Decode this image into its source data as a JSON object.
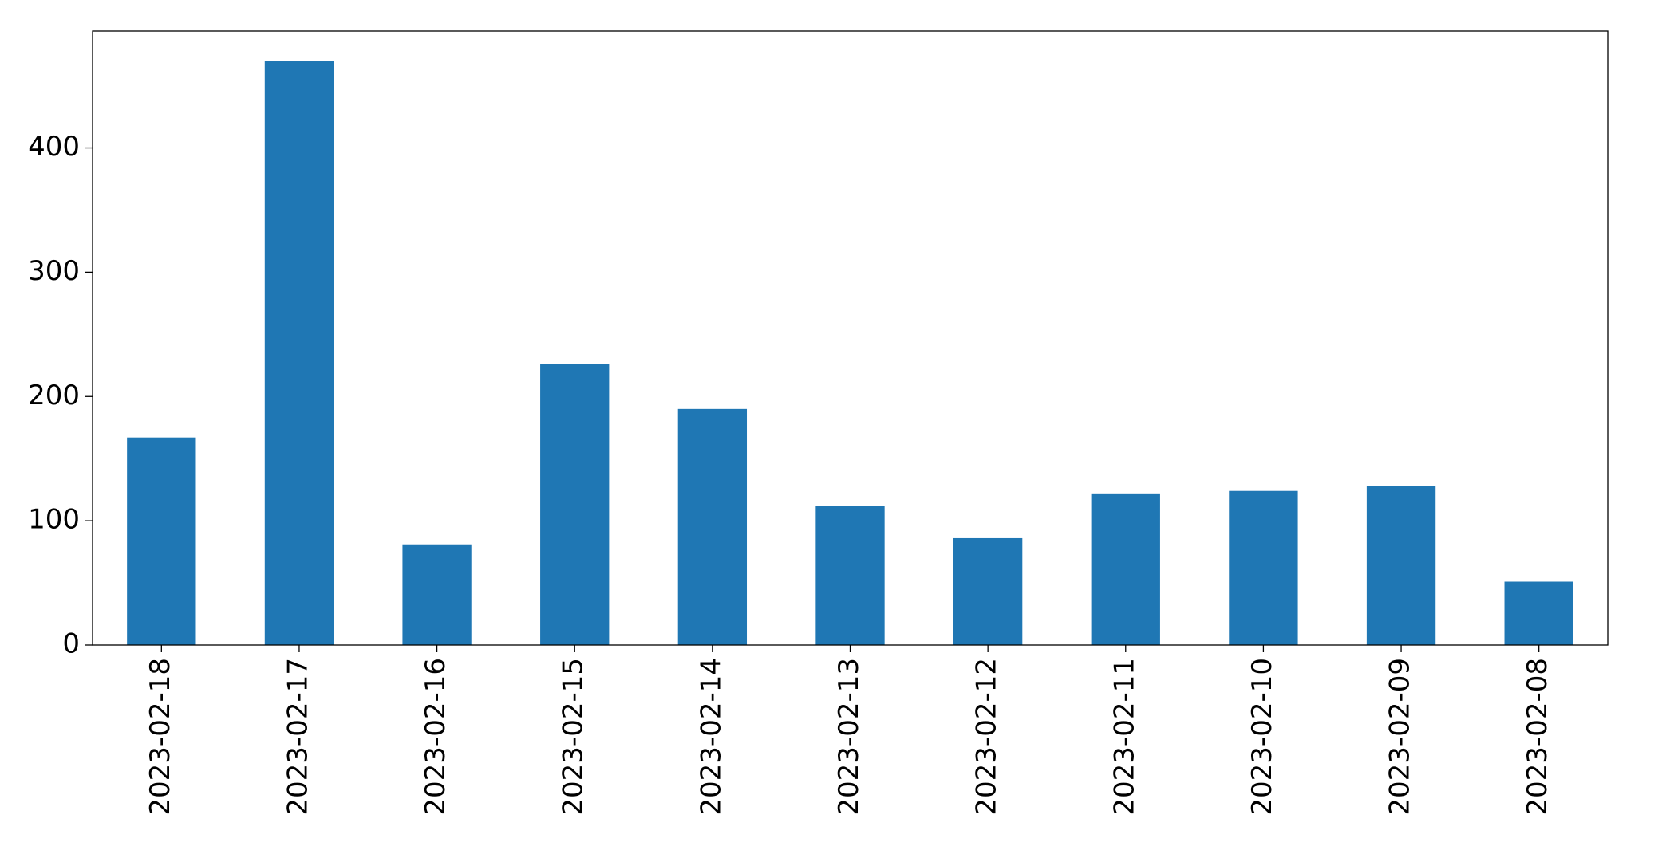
{
  "chart_data": {
    "type": "bar",
    "categories": [
      "2023-02-18",
      "2023-02-17",
      "2023-02-16",
      "2023-02-15",
      "2023-02-14",
      "2023-02-13",
      "2023-02-12",
      "2023-02-11",
      "2023-02-10",
      "2023-02-09",
      "2023-02-08"
    ],
    "values": [
      167,
      470,
      81,
      226,
      190,
      112,
      86,
      122,
      124,
      128,
      51
    ],
    "color": "#1f77b4",
    "ylim": [
      0,
      494
    ],
    "yticks": [
      0,
      100,
      200,
      300,
      400
    ],
    "grid": false
  }
}
